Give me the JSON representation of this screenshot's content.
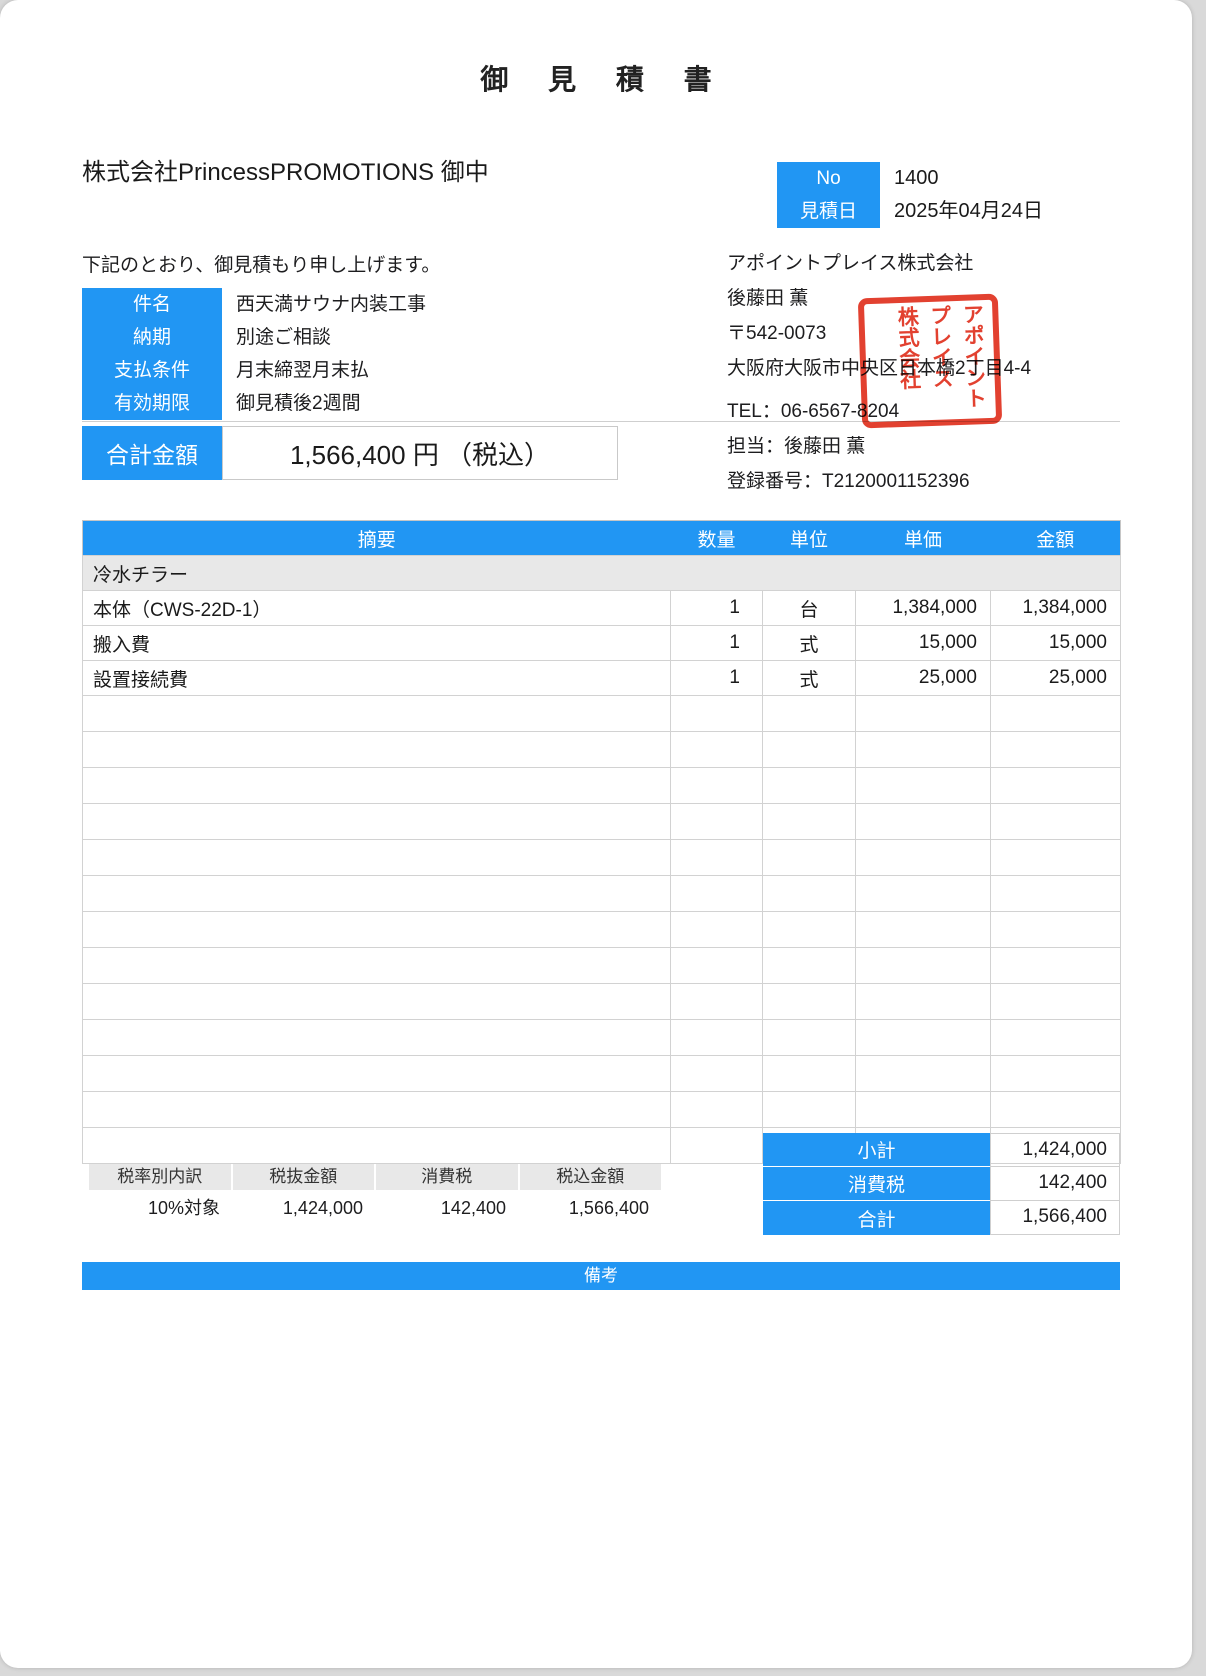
{
  "title": "御 見 積 書",
  "customer": "株式会社PrincessPROMOTIONS 御中",
  "greeting": "下記のとおり、御見積もり申し上げます。",
  "meta": {
    "no_label": "No",
    "no_value": "1400",
    "date_label": "見積日",
    "date_value": "2025年04月24日"
  },
  "info": {
    "rows": [
      {
        "label": "件名",
        "value": "西天満サウナ内装工事"
      },
      {
        "label": "納期",
        "value": "別途ご相談"
      },
      {
        "label": "支払条件",
        "value": "月末締翌月末払"
      },
      {
        "label": "有効期限",
        "value": "御見積後2週間"
      }
    ]
  },
  "total": {
    "label": "合計金額",
    "value": "1,566,400 円 （税込）"
  },
  "company": {
    "name": "アポイントプレイス株式会社",
    "person": "後藤田 薫",
    "postal": "〒542-0073",
    "address": "大阪府大阪市中央区日本橋2丁目4-4",
    "tel": "TEL：06-6567-8204",
    "contact": "担当：後藤田 薫",
    "registration": "登録番号：T2120001152396"
  },
  "stamp": {
    "lines": [
      "アポイント",
      "プレイス",
      "株式会社"
    ],
    "color": "#e0301e"
  },
  "items_table": {
    "headers": [
      "摘要",
      "数量",
      "単位",
      "単価",
      "金額"
    ],
    "category": "冷水チラー",
    "rows": [
      {
        "desc": "本体（CWS-22D-1）",
        "qty": "1",
        "unit": "台",
        "unit_price": "1,384,000",
        "amount": "1,384,000"
      },
      {
        "desc": "搬入費",
        "qty": "1",
        "unit": "式",
        "unit_price": "15,000",
        "amount": "15,000"
      },
      {
        "desc": "設置接続費",
        "qty": "1",
        "unit": "式",
        "unit_price": "25,000",
        "amount": "25,000"
      }
    ],
    "empty_row_count": 13
  },
  "summary": {
    "rows": [
      {
        "label": "小計",
        "value": "1,424,000"
      },
      {
        "label": "消費税",
        "value": "142,400"
      },
      {
        "label": "合計",
        "value": "1,566,400"
      }
    ]
  },
  "tax_table": {
    "headers": [
      "税率別内訳",
      "税抜金額",
      "消費税",
      "税込金額"
    ],
    "row": [
      "10%対象",
      "1,424,000",
      "142,400",
      "1,566,400"
    ]
  },
  "notes": {
    "label": "備考"
  },
  "colors": {
    "accent_blue": "#2196F3",
    "stamp_red": "#e0301e",
    "category_gray": "#e8e8e8"
  }
}
